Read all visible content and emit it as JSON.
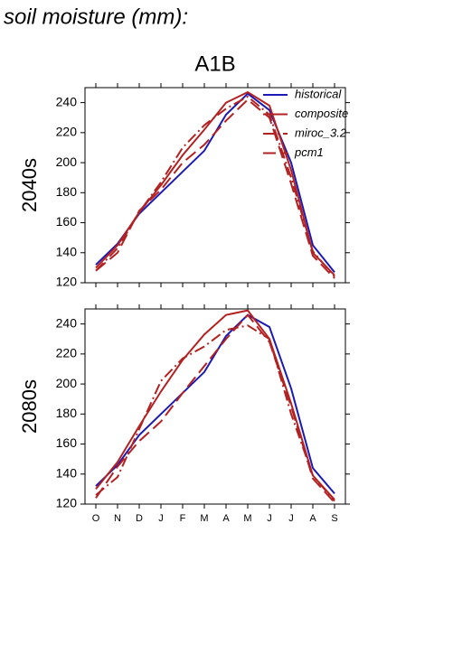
{
  "title": "soil moisture (mm):",
  "subtitle": "A1B",
  "chart_data": [
    {
      "type": "line",
      "row_label": "2040s",
      "categories": [
        null,
        null,
        null,
        null,
        null,
        null,
        null,
        null,
        null,
        null,
        null,
        null
      ],
      "ylim": [
        120,
        250
      ],
      "yticks": [
        120,
        140,
        160,
        180,
        200,
        220,
        240
      ],
      "legend": "upper right",
      "series": [
        {
          "name": "historical",
          "color": "#1a1ab4",
          "dash": "solid",
          "values": [
            132,
            146,
            166,
            180,
            194,
            208,
            232,
            246,
            235,
            200,
            145,
            127
          ]
        },
        {
          "name": "composite",
          "color": "#b22222",
          "dash": "solid",
          "values": [
            130,
            145,
            167,
            185,
            205,
            222,
            240,
            247,
            238,
            195,
            140,
            125
          ]
        },
        {
          "name": "miroc_3.2",
          "color": "#b22222",
          "dash": "dashdot",
          "values": [
            128,
            143,
            167,
            187,
            210,
            225,
            236,
            244,
            232,
            190,
            141,
            124
          ]
        },
        {
          "name": "pcm1",
          "color": "#b22222",
          "dash": "dash",
          "values": [
            128,
            140,
            168,
            182,
            200,
            212,
            228,
            242,
            230,
            186,
            138,
            123
          ]
        }
      ]
    },
    {
      "type": "line",
      "row_label": "2080s",
      "categories": [
        "O",
        "N",
        "D",
        "J",
        "F",
        "M",
        "A",
        "M",
        "J",
        "J",
        "A",
        "S"
      ],
      "ylim": [
        120,
        250
      ],
      "yticks": [
        120,
        140,
        160,
        180,
        200,
        220,
        240
      ],
      "series": [
        {
          "color": "#1a1ab4",
          "dash": "solid",
          "values": [
            132,
            146,
            166,
            180,
            194,
            208,
            232,
            246,
            238,
            197,
            144,
            127
          ]
        },
        {
          "color": "#b22222",
          "dash": "solid",
          "values": [
            130,
            148,
            172,
            195,
            216,
            233,
            246,
            249,
            230,
            187,
            139,
            123
          ]
        },
        {
          "color": "#b22222",
          "dash": "dashdot",
          "values": [
            126,
            138,
            170,
            202,
            217,
            225,
            236,
            239,
            230,
            180,
            139,
            122
          ]
        },
        {
          "color": "#b22222",
          "dash": "dash",
          "values": [
            124,
            145,
            162,
            175,
            194,
            212,
            230,
            246,
            228,
            185,
            137,
            121
          ]
        }
      ]
    }
  ]
}
